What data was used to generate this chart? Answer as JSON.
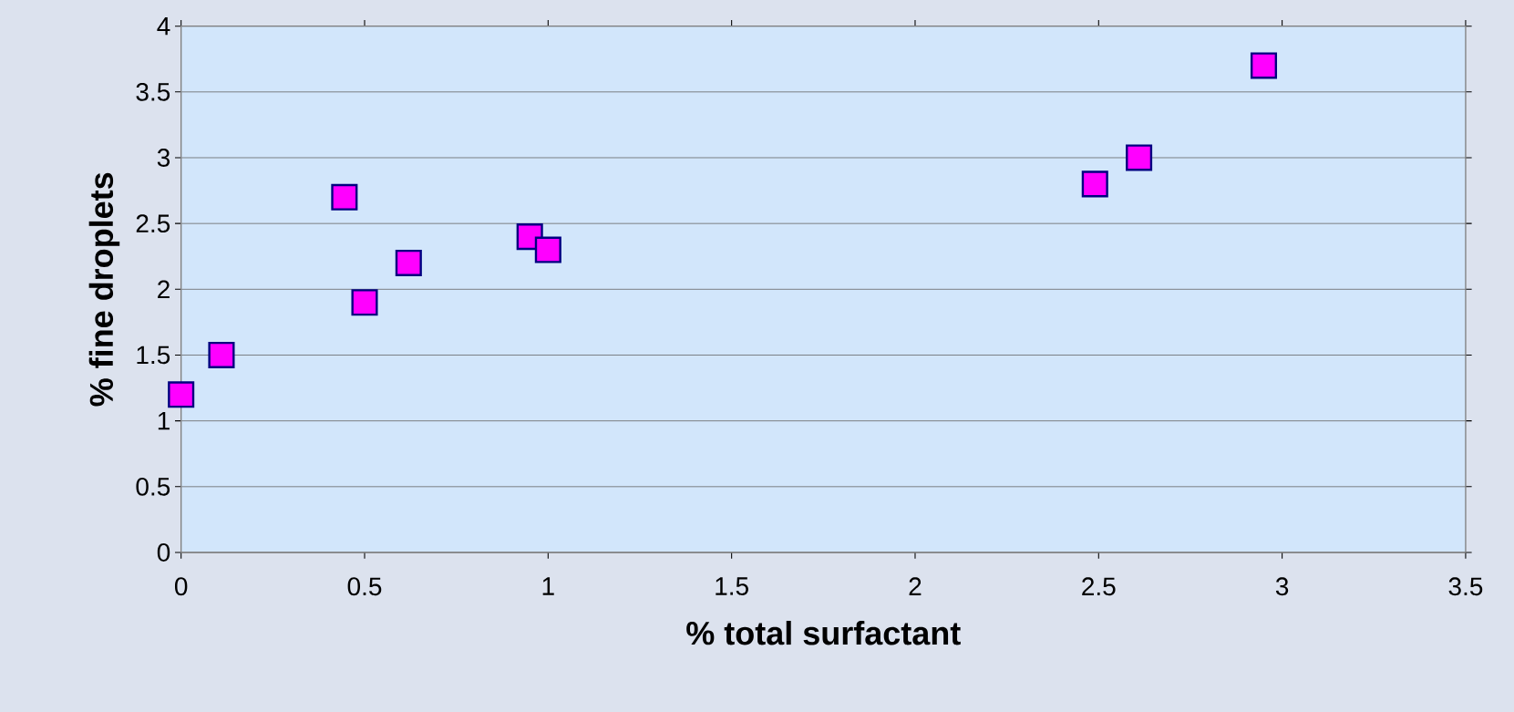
{
  "chart_data": {
    "type": "scatter",
    "xlabel": "% total surfactant",
    "ylabel": "% fine droplets",
    "x": [
      0,
      0.11,
      0.445,
      0.5,
      0.62,
      0.95,
      1.0,
      2.49,
      2.61,
      2.95
    ],
    "values": [
      1.2,
      1.5,
      2.7,
      1.9,
      2.2,
      2.4,
      2.3,
      2.8,
      3.0,
      3.7
    ],
    "color": "#ff00ff",
    "marker": "square",
    "grid": "y",
    "xlim": [
      0,
      3.5
    ],
    "ylim": [
      0,
      4
    ],
    "xticks": [
      0,
      0.5,
      1,
      1.5,
      2,
      2.5,
      3,
      3.5
    ],
    "yticks": [
      0,
      0.5,
      1,
      1.5,
      2,
      2.5,
      3,
      3.5,
      4
    ]
  }
}
